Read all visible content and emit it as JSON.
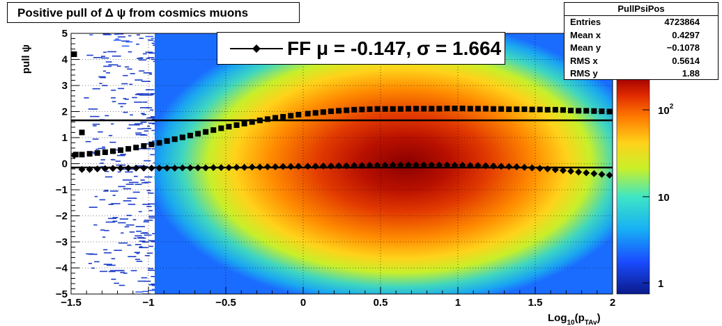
{
  "title": "Positive pull of Δ ψ from cosmics muons",
  "stats": {
    "name": "PullPsiPos",
    "rows": [
      {
        "label": "Entries",
        "value": "4723864"
      },
      {
        "label": "Mean x",
        "value": "0.4297"
      },
      {
        "label": "Mean y",
        "value": "−0.1078"
      },
      {
        "label": "RMS x",
        "value": "0.5614"
      },
      {
        "label": "RMS y",
        "value": "1.88"
      }
    ]
  },
  "legend": {
    "text": "FF μ = -0.147, σ =   1.664"
  },
  "chart_data": {
    "type": "heatmap",
    "xlabel": "Log10(pTAv)",
    "ylabel": "pull ψ",
    "xlim": [
      -1.5,
      2
    ],
    "ylim": [
      -5,
      5
    ],
    "x_ticks": [
      "−1.5",
      "−1",
      "−0.5",
      "0",
      "0.5",
      "1",
      "1.5",
      "2"
    ],
    "y_ticks": [
      "−5",
      "−4",
      "−3",
      "−2",
      "−1",
      "0",
      "1",
      "2",
      "3",
      "4",
      "5"
    ],
    "z_scale": "log",
    "z_ticks": [
      "1",
      "10",
      "10²"
    ],
    "grid": true,
    "fit_mean": -0.147,
    "fit_sigma": 1.664,
    "series": [
      {
        "marker": "square",
        "x": [
          -1.47,
          -1.43,
          -1.38,
          -1.33,
          -1.28,
          -1.23,
          -1.18,
          -1.13,
          -1.08,
          -1.03,
          -0.98,
          -0.93,
          -0.88,
          -0.83,
          -0.78,
          -0.73,
          -0.68,
          -0.63,
          -0.58,
          -0.53,
          -0.48,
          -0.43,
          -0.38,
          -0.33,
          -0.28,
          -0.23,
          -0.18,
          -0.13,
          -0.08,
          -0.03,
          0.03,
          0.08,
          0.13,
          0.18,
          0.23,
          0.28,
          0.33,
          0.38,
          0.43,
          0.48,
          0.53,
          0.58,
          0.63,
          0.68,
          0.73,
          0.78,
          0.83,
          0.88,
          0.93,
          0.98,
          1.03,
          1.08,
          1.13,
          1.18,
          1.23,
          1.28,
          1.33,
          1.38,
          1.43,
          1.48,
          1.53,
          1.58,
          1.63,
          1.68,
          1.73,
          1.78,
          1.83,
          1.88,
          1.93,
          1.98
        ],
        "y": [
          0.35,
          0.35,
          0.38,
          0.41,
          0.44,
          0.48,
          0.52,
          0.57,
          0.62,
          0.68,
          0.74,
          0.8,
          0.87,
          0.94,
          1.01,
          1.08,
          1.15,
          1.22,
          1.29,
          1.36,
          1.42,
          1.48,
          1.54,
          1.6,
          1.66,
          1.71,
          1.76,
          1.8,
          1.84,
          1.88,
          1.92,
          1.95,
          1.98,
          2.01,
          2.03,
          2.05,
          2.07,
          2.08,
          2.09,
          2.1,
          2.1,
          2.1,
          2.1,
          2.11,
          2.11,
          2.11,
          2.11,
          2.11,
          2.12,
          2.12,
          2.12,
          2.11,
          2.11,
          2.11,
          2.1,
          2.1,
          2.09,
          2.09,
          2.09,
          2.08,
          2.08,
          2.07,
          2.07,
          2.06,
          2.04,
          2.03,
          2.03,
          2.02,
          2.01,
          2.0
        ]
      },
      {
        "marker": "diamond",
        "x": [
          -1.48,
          -1.43,
          -1.38,
          -1.33,
          -1.28,
          -1.23,
          -1.18,
          -1.13,
          -1.08,
          -1.03,
          -0.98,
          -0.93,
          -0.88,
          -0.83,
          -0.78,
          -0.73,
          -0.68,
          -0.63,
          -0.58,
          -0.53,
          -0.48,
          -0.43,
          -0.38,
          -0.33,
          -0.28,
          -0.23,
          -0.18,
          -0.13,
          -0.08,
          -0.03,
          0.03,
          0.08,
          0.13,
          0.18,
          0.23,
          0.28,
          0.33,
          0.38,
          0.43,
          0.48,
          0.53,
          0.58,
          0.63,
          0.68,
          0.73,
          0.78,
          0.83,
          0.88,
          0.93,
          0.98,
          1.03,
          1.08,
          1.13,
          1.18,
          1.23,
          1.28,
          1.33,
          1.38,
          1.43,
          1.48,
          1.53,
          1.58,
          1.63,
          1.68,
          1.73,
          1.78,
          1.83,
          1.88,
          1.93,
          1.98
        ],
        "y": [
          0.32,
          -0.22,
          -0.22,
          -0.2,
          -0.19,
          -0.18,
          -0.17,
          -0.17,
          -0.17,
          -0.17,
          -0.17,
          -0.17,
          -0.17,
          -0.17,
          -0.16,
          -0.16,
          -0.16,
          -0.16,
          -0.15,
          -0.15,
          -0.15,
          -0.14,
          -0.14,
          -0.13,
          -0.13,
          -0.12,
          -0.12,
          -0.11,
          -0.11,
          -0.1,
          -0.1,
          -0.1,
          -0.09,
          -0.09,
          -0.08,
          -0.08,
          -0.07,
          -0.07,
          -0.06,
          -0.06,
          -0.06,
          -0.05,
          -0.05,
          -0.05,
          -0.05,
          -0.05,
          -0.05,
          -0.05,
          -0.05,
          -0.06,
          -0.06,
          -0.07,
          -0.07,
          -0.08,
          -0.09,
          -0.1,
          -0.11,
          -0.12,
          -0.14,
          -0.16,
          -0.18,
          -0.2,
          -0.23,
          -0.26,
          -0.29,
          -0.32,
          -0.35,
          -0.38,
          -0.41,
          -0.44
        ]
      }
    ],
    "outliers": [
      {
        "x": -1.48,
        "y": 4.2
      },
      {
        "x": -1.43,
        "y": 1.2
      }
    ],
    "fit_lines": [
      1.664,
      -0.147
    ]
  }
}
